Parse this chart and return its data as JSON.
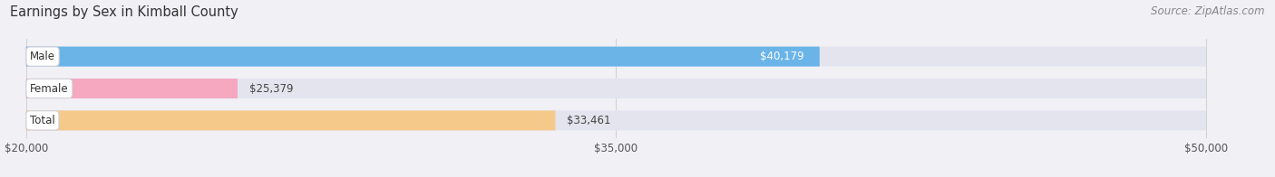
{
  "title": "Earnings by Sex in Kimball County",
  "source": "Source: ZipAtlas.com",
  "categories": [
    "Male",
    "Female",
    "Total"
  ],
  "values": [
    40179,
    25379,
    33461
  ],
  "bar_colors": [
    "#6ab4e8",
    "#f5a8c0",
    "#f5c98a"
  ],
  "track_color": "#e4e4ee",
  "xmin": 20000,
  "xmax": 50000,
  "xticks": [
    20000,
    35000,
    50000
  ],
  "xtick_labels": [
    "$20,000",
    "$35,000",
    "$50,000"
  ],
  "value_labels": [
    "$40,179",
    "$25,379",
    "$33,461"
  ],
  "title_fontsize": 10.5,
  "source_fontsize": 8.5,
  "bar_label_fontsize": 8.5,
  "value_fontsize": 8.5,
  "background_color": "#f0f0f5"
}
